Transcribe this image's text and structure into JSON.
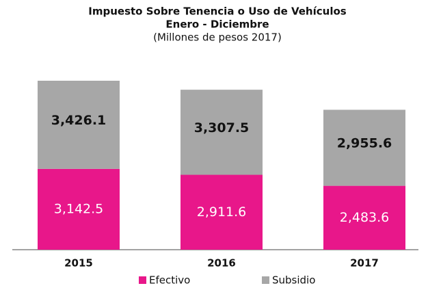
{
  "chart_data": {
    "type": "stacked_bar",
    "title": "Impuesto Sobre Tenencia o Uso de Vehículos",
    "subtitle": "Enero - Diciembre",
    "subtitle2": "(Millones de pesos 2017)",
    "categories": [
      "2015",
      "2016",
      "2017"
    ],
    "series": [
      {
        "name": "Efectivo",
        "color": "#e8178a",
        "values": [
          3142.5,
          2911.6,
          2483.6
        ],
        "value_labels": [
          "3,142.5",
          "2,911.6",
          "2,483.6"
        ]
      },
      {
        "name": "Subsidio",
        "color": "#a7a7a7",
        "values": [
          3426.1,
          3307.5,
          2955.6
        ],
        "value_labels": [
          "3,426.1",
          "3,307.5",
          "2,955.6"
        ]
      }
    ],
    "legend": "bottom"
  }
}
